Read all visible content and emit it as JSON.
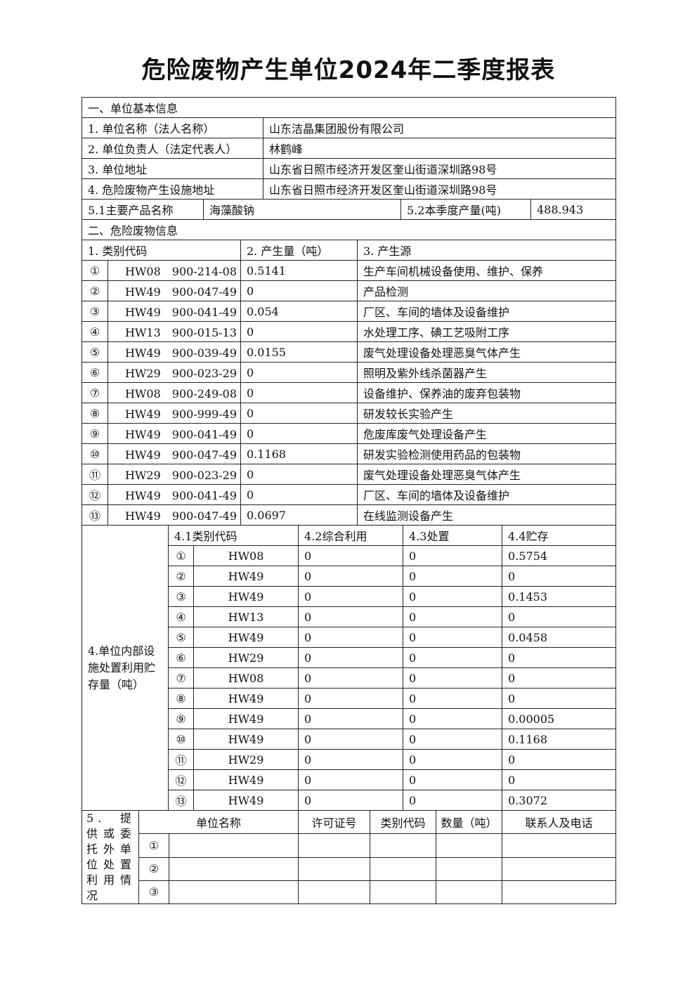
{
  "title": "危险废物产生单位2024年二季度报表",
  "section1": {
    "heading": "一、单位基本信息",
    "rows": [
      {
        "label": "1. 单位名称（法人名称）",
        "value": "山东洁晶集团股份有限公司"
      },
      {
        "label": "2. 单位负责人（法定代表人）",
        "value": "林鹤峰"
      },
      {
        "label": "3. 单位地址",
        "value": "山东省日照市经济开发区奎山街道深圳路98号"
      },
      {
        "label": "4. 危险废物产生设施地址",
        "value": "山东省日照市经济开发区奎山街道深圳路98号"
      }
    ],
    "product_label": "5.1主要产品名称",
    "product_value": "海藻酸钠",
    "output_label": "5.2本季度产量(吨)",
    "output_value": "488.943"
  },
  "section2": {
    "heading": "二、危险废物信息",
    "headers": [
      "1. 类别代码",
      "2. 产生量（吨）",
      "3. 产生源"
    ],
    "rows": [
      {
        "no": "①",
        "code": "HW08　900-214-08",
        "amount": "0.5141",
        "source": "生产车间机械设备使用、维护、保养"
      },
      {
        "no": "②",
        "code": "HW49　900-047-49",
        "amount": "0",
        "source": "产品检测"
      },
      {
        "no": "③",
        "code": "HW49　900-041-49",
        "amount": "0.054",
        "source": "厂区、车间的墙体及设备维护"
      },
      {
        "no": "④",
        "code": "HW13　900-015-13",
        "amount": "0",
        "source": "水处理工序、碘工艺吸附工序"
      },
      {
        "no": "⑤",
        "code": "HW49　900-039-49",
        "amount": "0.0155",
        "source": "废气处理设备处理恶臭气体产生"
      },
      {
        "no": "⑥",
        "code": "HW29　900-023-29",
        "amount": "0",
        "source": "照明及紫外线杀菌器产生"
      },
      {
        "no": "⑦",
        "code": "HW08　900-249-08",
        "amount": "0",
        "source": "设备维护、保养油的废弃包装物"
      },
      {
        "no": "⑧",
        "code": "HW49　900-999-49",
        "amount": "0",
        "source": "研发较长实验产生"
      },
      {
        "no": "⑨",
        "code": "HW49　900-041-49",
        "amount": "0",
        "source": "危废库废气处理设备产生"
      },
      {
        "no": "⑩",
        "code": "HW49　900-047-49",
        "amount": "0.1168",
        "source": "研发实验检测使用药品的包装物"
      },
      {
        "no": "⑪",
        "code": "HW29　900-023-29",
        "amount": "0",
        "source": "废气处理设备处理恶臭气体产生"
      },
      {
        "no": "⑫",
        "code": "HW49　900-041-49",
        "amount": "0",
        "source": "厂区、车间的墙体及设备维护"
      },
      {
        "no": "⑬",
        "code": "HW49　900-047-49",
        "amount": "0.0697",
        "source": "在线监测设备产生"
      }
    ]
  },
  "section4": {
    "label": "4.单位内部设施处置利用贮存量（吨）",
    "headers": [
      "4.1类别代码",
      "4.2综合利用",
      "4.3处置",
      "4.4贮存"
    ],
    "rows": [
      {
        "no": "①",
        "code": "HW08",
        "reuse": "0",
        "dispose": "0",
        "store": "0.5754"
      },
      {
        "no": "②",
        "code": "HW49",
        "reuse": "0",
        "dispose": "0",
        "store": "0"
      },
      {
        "no": "③",
        "code": "HW49",
        "reuse": "0",
        "dispose": "0",
        "store": "0.1453"
      },
      {
        "no": "④",
        "code": "HW13",
        "reuse": "0",
        "dispose": "0",
        "store": "0"
      },
      {
        "no": "⑤",
        "code": "HW49",
        "reuse": "0",
        "dispose": "0",
        "store": "0.0458"
      },
      {
        "no": "⑥",
        "code": "HW29",
        "reuse": "0",
        "dispose": "0",
        "store": "0"
      },
      {
        "no": "⑦",
        "code": "HW08",
        "reuse": "0",
        "dispose": "0",
        "store": "0"
      },
      {
        "no": "⑧",
        "code": "HW49",
        "reuse": "0",
        "dispose": "0",
        "store": "0"
      },
      {
        "no": "⑨",
        "code": "HW49",
        "reuse": "0",
        "dispose": "0",
        "store": "0.00005"
      },
      {
        "no": "⑩",
        "code": "HW49",
        "reuse": "0",
        "dispose": "0",
        "store": "0.1168"
      },
      {
        "no": "⑪",
        "code": "HW29",
        "reuse": "0",
        "dispose": "0",
        "store": "0"
      },
      {
        "no": "⑫",
        "code": "HW49",
        "reuse": "0",
        "dispose": "0",
        "store": "0"
      },
      {
        "no": "⑬",
        "code": "HW49",
        "reuse": "0",
        "dispose": "0",
        "store": "0.3072"
      }
    ]
  },
  "section5": {
    "label": "5.提供或委托外单位处置利用情况",
    "headers": [
      "单位名称",
      "许可证号",
      "类别代码",
      "数量（吨）",
      "联系人及电话"
    ],
    "rows": [
      {
        "no": "①"
      },
      {
        "no": "②"
      },
      {
        "no": "③"
      }
    ]
  }
}
